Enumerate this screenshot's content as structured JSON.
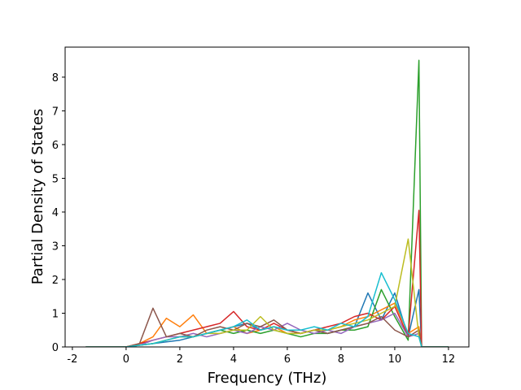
{
  "chart_data": {
    "type": "line",
    "xlabel": "Frequency (THz)",
    "ylabel": "Partial Density of States",
    "x": [
      -1.5,
      -0.5,
      0,
      0.5,
      1,
      1.5,
      2,
      2.5,
      3,
      3.5,
      4,
      4.5,
      5,
      5.5,
      6,
      6.5,
      7,
      7.5,
      8,
      8.5,
      9,
      9.5,
      10,
      10.5,
      10.9,
      11.0,
      11.5,
      12.0
    ],
    "series": [
      {
        "color": "#1f77b4",
        "values": [
          0,
          0,
          0,
          0.05,
          0.1,
          0.15,
          0.2,
          0.3,
          0.4,
          0.5,
          0.6,
          0.7,
          0.5,
          0.6,
          0.5,
          0.4,
          0.5,
          0.4,
          0.5,
          0.6,
          1.6,
          0.8,
          1.6,
          0.3,
          1.7,
          0,
          0,
          0
        ]
      },
      {
        "color": "#ff7f0e",
        "values": [
          0,
          0,
          0,
          0.1,
          0.3,
          0.85,
          0.6,
          0.95,
          0.4,
          0.5,
          0.6,
          0.4,
          0.5,
          0.6,
          0.4,
          0.4,
          0.5,
          0.5,
          0.6,
          0.8,
          0.9,
          1.1,
          1.3,
          0.4,
          0.6,
          0,
          0,
          0
        ]
      },
      {
        "color": "#2ca02c",
        "values": [
          0,
          0,
          0,
          0.05,
          0.1,
          0.2,
          0.3,
          0.3,
          0.4,
          0.5,
          0.4,
          0.5,
          0.4,
          0.5,
          0.4,
          0.3,
          0.4,
          0.4,
          0.5,
          0.5,
          0.6,
          1.7,
          0.9,
          0.2,
          8.5,
          0,
          0,
          0
        ]
      },
      {
        "color": "#d62728",
        "values": [
          0,
          0,
          0,
          0.1,
          0.2,
          0.3,
          0.4,
          0.5,
          0.6,
          0.7,
          1.05,
          0.6,
          0.5,
          0.7,
          0.5,
          0.4,
          0.5,
          0.6,
          0.7,
          0.9,
          1.0,
          0.8,
          1.2,
          0.3,
          4.05,
          0,
          0,
          0
        ]
      },
      {
        "color": "#9467bd",
        "values": [
          0,
          0,
          0,
          0.05,
          0.2,
          0.3,
          0.3,
          0.4,
          0.3,
          0.4,
          0.5,
          0.4,
          0.6,
          0.5,
          0.7,
          0.5,
          0.4,
          0.5,
          0.4,
          0.6,
          0.7,
          0.8,
          1.0,
          0.3,
          0.4,
          0,
          0,
          0
        ]
      },
      {
        "color": "#8c564b",
        "values": [
          0,
          0,
          0,
          0.1,
          1.15,
          0.3,
          0.4,
          0.3,
          0.5,
          0.6,
          0.5,
          0.7,
          0.6,
          0.8,
          0.5,
          0.4,
          0.5,
          0.4,
          0.5,
          0.6,
          0.7,
          0.9,
          0.5,
          0.3,
          0.5,
          0,
          0,
          0
        ]
      },
      {
        "color": "#bcbd22",
        "values": [
          0,
          0,
          0,
          0.05,
          0.1,
          0.2,
          0.3,
          0.3,
          0.4,
          0.4,
          0.5,
          0.5,
          0.9,
          0.5,
          0.4,
          0.4,
          0.5,
          0.5,
          0.6,
          0.7,
          0.8,
          1.0,
          1.2,
          3.2,
          0.3,
          0,
          0,
          0
        ]
      },
      {
        "color": "#17becf",
        "values": [
          0,
          0,
          0,
          0.05,
          0.1,
          0.2,
          0.3,
          0.3,
          0.4,
          0.5,
          0.6,
          0.8,
          0.5,
          0.6,
          0.5,
          0.5,
          0.6,
          0.5,
          0.7,
          0.6,
          0.9,
          2.2,
          1.4,
          0.4,
          0.3,
          0,
          0,
          0
        ]
      }
    ],
    "xlim": [
      -2.27,
      12.76
    ],
    "ylim": [
      0,
      8.89
    ],
    "xticks": [
      -2,
      0,
      2,
      4,
      6,
      8,
      10,
      12
    ],
    "yticks": [
      0,
      1,
      2,
      3,
      4,
      5,
      6,
      7,
      8
    ]
  }
}
